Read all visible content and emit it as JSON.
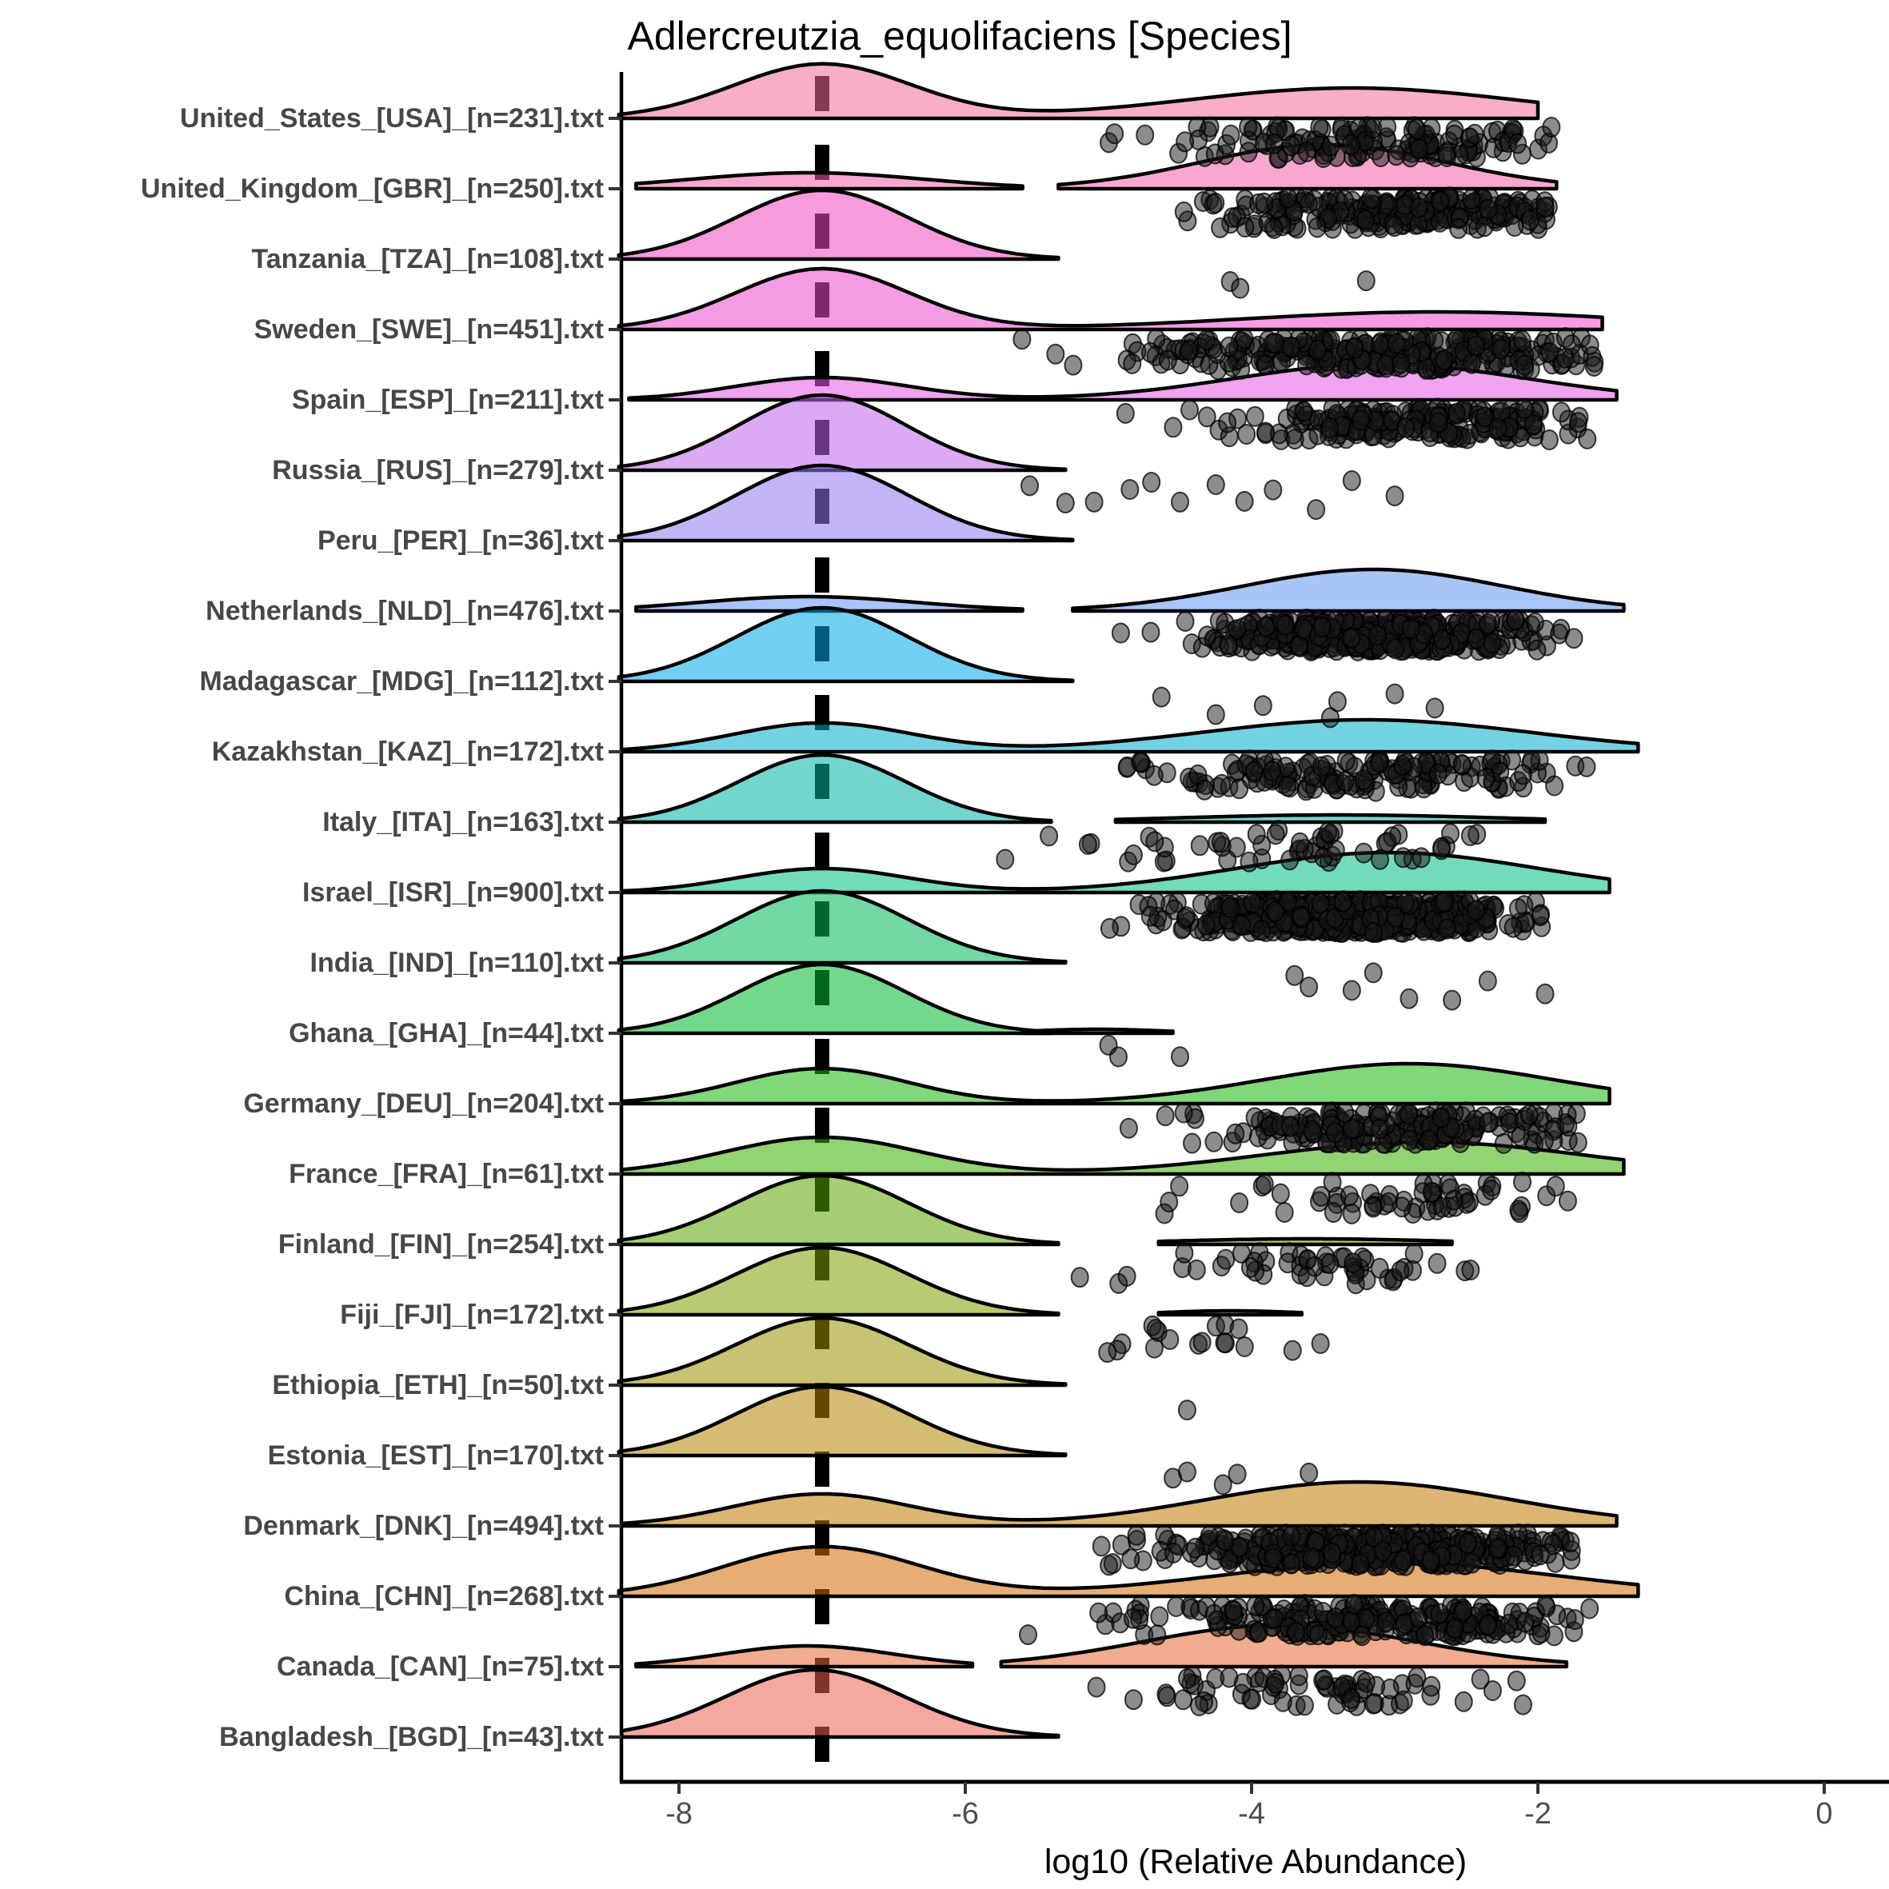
{
  "title": "Adlercreutzia_equolifaciens [Species]",
  "chart_data": {
    "type": "ridgeline",
    "title": "Adlercreutzia_equolifaciens [Species]",
    "xlabel": "log10 (Relative Abundance)",
    "ylabel": "",
    "xlim": [
      -8.5,
      0.45
    ],
    "x_ticks": [
      -8,
      -6,
      -4,
      -2,
      0
    ],
    "x_tick_labels": [
      "-8",
      "-6",
      "-4",
      "-2",
      "0"
    ],
    "grid": false,
    "legend": false,
    "reference_line_x": -7,
    "reference_line_style": "dashed-black-vertical",
    "colors": {
      "axis_text": "#4d4d4d",
      "label_text": "#474747",
      "axis_line": "#000000",
      "ridge_outline": "#000000",
      "point_fill": "#1a1a1a",
      "ridge_fill_alpha": 0.55
    },
    "series": [
      {
        "label": "United_States_[USA]_[n=231].txt",
        "n": 231,
        "color": "#F26C97",
        "segments": [
          {
            "range": [
              -8.42,
              -2.0
            ],
            "gaussians": [
              [
                -7.0,
                0.62,
                68
              ],
              [
                -3.3,
                1.15,
                38
              ]
            ]
          }
        ],
        "points": {
          "count": 140,
          "mean": -3.1,
          "sd": 0.75,
          "min": -5.5,
          "max": -1.85
        }
      },
      {
        "label": "United_Kingdom_[GBR]_[n=250].txt",
        "n": 250,
        "color": "#F261AA",
        "segments": [
          {
            "range": [
              -8.3,
              -5.6
            ],
            "gaussians": [
              [
                -7.1,
                0.8,
                20
              ]
            ]
          },
          {
            "range": [
              -5.35,
              -1.87
            ],
            "gaussians": [
              [
                -3.5,
                0.85,
                55
              ]
            ]
          }
        ],
        "points": {
          "count": 235,
          "mean": -2.95,
          "sd": 0.6,
          "min": -4.9,
          "max": -1.9
        }
      },
      {
        "label": "Tanzania_[TZA]_[n=108].txt",
        "n": 108,
        "color": "#F049BF",
        "segments": [
          {
            "range": [
              -8.42,
              -5.35
            ],
            "gaussians": [
              [
                -7.0,
                0.6,
                86
              ]
            ]
          }
        ],
        "points": {
          "values": [
            -4.15,
            -4.08,
            -3.2
          ]
        }
      },
      {
        "label": "Sweden_[SWE]_[n=451].txt",
        "n": 451,
        "color": "#EB49CE",
        "segments": [
          {
            "range": [
              -8.42,
              -1.55
            ],
            "gaussians": [
              [
                -7.0,
                0.6,
                76
              ],
              [
                -2.7,
                1.35,
                22
              ]
            ]
          }
        ],
        "points": {
          "count": 285,
          "mean": -3.0,
          "sd": 0.9,
          "min": -5.95,
          "max": -1.6
        }
      },
      {
        "label": "Spain_[ESP]_[n=211].txt",
        "n": 211,
        "color": "#E258E4",
        "segments": [
          {
            "range": [
              -8.35,
              -1.45
            ],
            "gaussians": [
              [
                -7.0,
                0.6,
                28
              ],
              [
                -3.1,
                1.0,
                45
              ]
            ]
          }
        ],
        "points": {
          "count": 195,
          "mean": -2.85,
          "sd": 0.7,
          "min": -5.5,
          "max": -1.5
        }
      },
      {
        "label": "Russia_[RUS]_[n=279].txt",
        "n": 279,
        "color": "#BE64EB",
        "segments": [
          {
            "range": [
              -8.42,
              -5.3
            ],
            "gaussians": [
              [
                -7.0,
                0.58,
                94
              ]
            ]
          }
        ],
        "points": {
          "values": [
            -5.55,
            -5.3,
            -5.1,
            -4.85,
            -4.7,
            -4.5,
            -4.25,
            -4.05,
            -3.85,
            -3.55,
            -3.3,
            -3.0
          ]
        }
      },
      {
        "label": "Peru_[PER]_[n=36].txt",
        "n": 36,
        "color": "#9277EF",
        "segments": [
          {
            "range": [
              -8.42,
              -5.25
            ],
            "gaussians": [
              [
                -7.0,
                0.6,
                94
              ]
            ]
          }
        ],
        "points": {
          "values": []
        }
      },
      {
        "label": "Netherlands_[NLD]_[n=476].txt",
        "n": 476,
        "color": "#6394EF",
        "segments": [
          {
            "range": [
              -8.3,
              -5.6
            ],
            "gaussians": [
              [
                -7.1,
                0.75,
                18
              ]
            ]
          },
          {
            "range": [
              -5.25,
              -1.4
            ],
            "gaussians": [
              [
                -3.15,
                0.9,
                52
              ]
            ]
          }
        ],
        "points": {
          "count": 430,
          "mean": -3.15,
          "sd": 0.55,
          "min": -5.1,
          "max": -1.7
        }
      },
      {
        "label": "Madagascar_[MDG]_[n=112].txt",
        "n": 112,
        "color": "#00A8E6",
        "segments": [
          {
            "range": [
              -8.42,
              -5.25
            ],
            "gaussians": [
              [
                -7.0,
                0.6,
                92
              ]
            ]
          }
        ],
        "points": {
          "values": [
            -4.63,
            -4.25,
            -3.92,
            -3.45,
            -3.4,
            -3.0,
            -2.72
          ]
        }
      },
      {
        "label": "Kazakhstan_[KAZ]_[n=172].txt",
        "n": 172,
        "color": "#00ADCA",
        "segments": [
          {
            "range": [
              -8.4,
              -1.3
            ],
            "gaussians": [
              [
                -7.0,
                0.62,
                36
              ],
              [
                -3.2,
                1.15,
                40
              ]
            ]
          }
        ],
        "points": {
          "count": 160,
          "mean": -3.2,
          "sd": 0.8,
          "min": -5.9,
          "max": -1.35
        }
      },
      {
        "label": "Italy_[ITA]_[n=163].txt",
        "n": 163,
        "color": "#00B4A6",
        "segments": [
          {
            "range": [
              -8.42,
              -5.4
            ],
            "gaussians": [
              [
                -7.0,
                0.58,
                84
              ]
            ]
          },
          {
            "range": [
              -4.95,
              -1.95
            ],
            "gaussians": [
              [
                -3.4,
                1.1,
                9
              ]
            ]
          }
        ],
        "points": {
          "count": 55,
          "mean": -3.5,
          "sd": 0.8,
          "min": -5.95,
          "max": -2.3
        }
      },
      {
        "label": "Israel_[ISR]_[n=900].txt",
        "n": 900,
        "color": "#00BC89",
        "segments": [
          {
            "range": [
              -8.4,
              -1.5
            ],
            "gaussians": [
              [
                -7.0,
                0.6,
                30
              ],
              [
                -3.05,
                1.05,
                50
              ]
            ]
          }
        ],
        "points": {
          "count": 640,
          "mean": -3.3,
          "sd": 0.55,
          "min": -5.6,
          "max": -1.95
        }
      },
      {
        "label": "India_[IND]_[n=110].txt",
        "n": 110,
        "color": "#00BA5A",
        "segments": [
          {
            "range": [
              -8.42,
              -5.3
            ],
            "gaussians": [
              [
                -7.0,
                0.6,
                90
              ]
            ]
          }
        ],
        "points": {
          "values": [
            -3.7,
            -3.6,
            -3.3,
            -3.15,
            -2.9,
            -2.6,
            -2.35,
            -1.95
          ]
        }
      },
      {
        "label": "Ghana_[GHA]_[n=44].txt",
        "n": 44,
        "color": "#00B82E",
        "segments": [
          {
            "range": [
              -8.42,
              -5.4
            ],
            "gaussians": [
              [
                -7.0,
                0.58,
                86
              ]
            ]
          },
          {
            "range": [
              -5.6,
              -4.55
            ],
            "gaussians": [
              [
                -5.08,
                0.45,
                5
              ]
            ]
          }
        ],
        "points": {
          "values": [
            -5.0,
            -4.93,
            -4.5
          ]
        }
      },
      {
        "label": "Germany_[DEU]_[n=204].txt",
        "n": 204,
        "color": "#1AB60B",
        "segments": [
          {
            "range": [
              -8.4,
              -1.5
            ],
            "gaussians": [
              [
                -7.0,
                0.6,
                44
              ],
              [
                -2.9,
                1.0,
                50
              ]
            ]
          }
        ],
        "points": {
          "count": 195,
          "mean": -3.0,
          "sd": 0.7,
          "min": -5.6,
          "max": -1.7
        }
      },
      {
        "label": "France_[FRA]_[n=61].txt",
        "n": 61,
        "color": "#39AF00",
        "segments": [
          {
            "range": [
              -8.4,
              -1.4
            ],
            "gaussians": [
              [
                -7.0,
                0.68,
                46
              ],
              [
                -2.8,
                1.1,
                40
              ]
            ]
          }
        ],
        "points": {
          "count": 58,
          "mean": -2.9,
          "sd": 0.8,
          "min": -5.5,
          "max": -1.7
        }
      },
      {
        "label": "Finland_[FIN]_[n=254].txt",
        "n": 254,
        "color": "#5BA600",
        "segments": [
          {
            "range": [
              -8.42,
              -5.35
            ],
            "gaussians": [
              [
                -7.0,
                0.6,
                86
              ]
            ]
          },
          {
            "range": [
              -4.65,
              -2.6
            ],
            "gaussians": [
              [
                -3.6,
                0.95,
                7
              ]
            ]
          }
        ],
        "points": {
          "count": 50,
          "mean": -3.6,
          "sd": 0.62,
          "min": -6.05,
          "max": -2.45
        }
      },
      {
        "label": "Fiji_[FJI]_[n=172].txt",
        "n": 172,
        "color": "#7CA000",
        "segments": [
          {
            "range": [
              -8.42,
              -5.35
            ],
            "gaussians": [
              [
                -7.0,
                0.6,
                84
              ]
            ]
          },
          {
            "range": [
              -4.65,
              -3.65
            ],
            "gaussians": [
              [
                -4.15,
                0.45,
                5
              ]
            ]
          }
        ],
        "points": {
          "count": 18,
          "mean": -4.2,
          "sd": 0.5,
          "min": -5.1,
          "max": -3.25
        }
      },
      {
        "label": "Ethiopia_[ETH]_[n=50].txt",
        "n": 50,
        "color": "#9B9000",
        "segments": [
          {
            "range": [
              -8.42,
              -5.3
            ],
            "gaussians": [
              [
                -7.0,
                0.6,
                84
              ]
            ]
          }
        ],
        "points": {
          "values": [
            -4.45
          ]
        }
      },
      {
        "label": "Estonia_[EST]_[n=170].txt",
        "n": 170,
        "color": "#B18500",
        "segments": [
          {
            "range": [
              -8.42,
              -5.3
            ],
            "gaussians": [
              [
                -7.0,
                0.6,
                86
              ]
            ]
          }
        ],
        "points": {
          "values": [
            -4.55,
            -4.45,
            -4.2,
            -4.1,
            -3.6
          ]
        }
      },
      {
        "label": "Denmark_[DNK]_[n=494].txt",
        "n": 494,
        "color": "#C17800",
        "segments": [
          {
            "range": [
              -8.4,
              -1.45
            ],
            "gaussians": [
              [
                -7.0,
                0.62,
                40
              ],
              [
                -3.25,
                1.05,
                55
              ]
            ]
          }
        ],
        "points": {
          "count": 425,
          "mean": -3.2,
          "sd": 0.7,
          "min": -5.95,
          "max": -1.75
        }
      },
      {
        "label": "China_[CHN]_[n=268].txt",
        "n": 268,
        "color": "#D26C02",
        "segments": [
          {
            "range": [
              -8.42,
              -1.3
            ],
            "gaussians": [
              [
                -7.0,
                0.68,
                62
              ],
              [
                -3.05,
                1.2,
                42
              ]
            ]
          }
        ],
        "points": {
          "count": 245,
          "mean": -3.1,
          "sd": 0.85,
          "min": -5.95,
          "max": -1.55
        }
      },
      {
        "label": "Canada_[CAN]_[n=75].txt",
        "n": 75,
        "color": "#E4682E",
        "segments": [
          {
            "range": [
              -8.3,
              -5.95
            ],
            "gaussians": [
              [
                -7.1,
                0.6,
                26
              ]
            ]
          },
          {
            "range": [
              -5.75,
              -1.8
            ],
            "gaussians": [
              [
                -3.8,
                0.95,
                52
              ]
            ]
          }
        ],
        "points": {
          "count": 70,
          "mean": -3.5,
          "sd": 0.7,
          "min": -5.5,
          "max": -2.05
        }
      },
      {
        "label": "Bangladesh_[BGD]_[n=43].txt",
        "n": 43,
        "color": "#ED6152",
        "segments": [
          {
            "range": [
              -8.4,
              -5.35
            ],
            "gaussians": [
              [
                -7.05,
                0.62,
                84
              ]
            ]
          }
        ],
        "points": {
          "values": []
        }
      }
    ]
  }
}
